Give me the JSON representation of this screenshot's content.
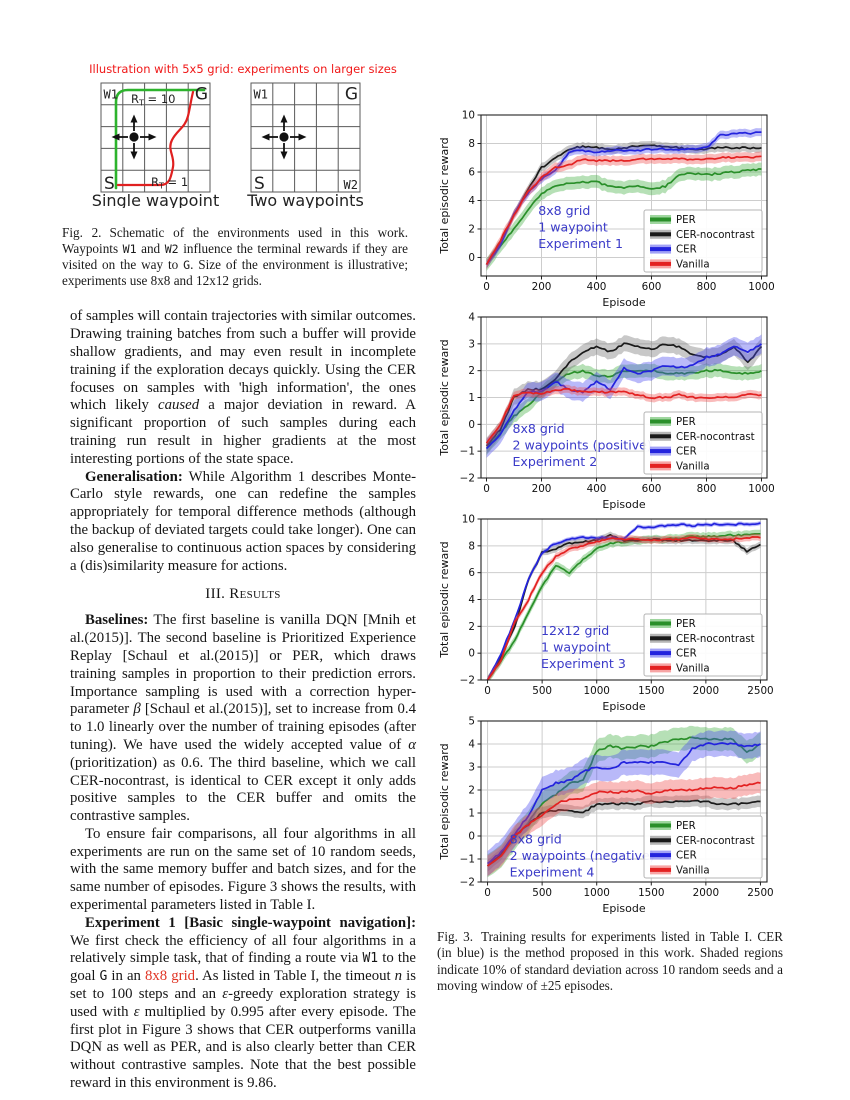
{
  "colors": {
    "annotation_blue": "#3a3ac8",
    "figure_title_red": "#f01818",
    "link_red": "#e03424",
    "per_green": "#2a8f2a",
    "cer_blue": "#2323dd",
    "vanilla_red": "#e32222",
    "nocontrast_black": "#1a1a1a"
  },
  "figure2": {
    "title": "Illustration with 5x5 grid: experiments on larger sizes",
    "left": {
      "w1": "W1",
      "g": "G",
      "s": "S",
      "caption": "Single waypoint",
      "rt_top": {
        "r": "R",
        "sub": "T",
        "eq": " = 10"
      },
      "rt_bottom": {
        "r": "R",
        "sub": "T",
        "eq": " = 1"
      }
    },
    "right": {
      "w1": "W1",
      "g": "G",
      "s": "S",
      "w2": "W2",
      "caption": "Two waypoints"
    },
    "caption_segments": [
      {
        "t": "Fig. 2.",
        "s": "figno"
      },
      {
        "t": "Schematic of the environments used in this work. Waypoints "
      },
      {
        "t": "W1",
        "s": "tt"
      },
      {
        "t": " and "
      },
      {
        "t": "W2",
        "s": "tt"
      },
      {
        "t": " influence the terminal rewards if they are visited on the way to "
      },
      {
        "t": "G",
        "s": "tt"
      },
      {
        "t": ". Size of the environment is illustrative; experiments use 8x8 and 12x12 grids."
      }
    ]
  },
  "left_column": {
    "para_outcomes": [
      {
        "t": "of samples will contain trajectories with similar outcomes. Drawing training batches from such a buffer will provide shallow gradients, and may even result in incomplete training if the exploration decays quickly. Using the CER focuses on samples with 'high information', the ones which likely "
      },
      {
        "t": "caused",
        "s": "i"
      },
      {
        "t": " a major deviation in reward. A significant proportion of such samples during each training run result in higher gradients at the most interesting portions of the state space."
      }
    ],
    "para_generalisation": [
      {
        "t": "Generalisation:",
        "s": "b"
      },
      {
        "t": " While Algorithm 1 describes Monte-Carlo style rewards, one can redefine the samples appropriately for temporal difference methods (although the backup of deviated targets could take longer). One can also generalise to continuous action spaces by considering a (dis)similarity measure for actions."
      }
    ],
    "heading": [
      {
        "t": "III. "
      },
      {
        "t": "Results",
        "s": "sc"
      }
    ],
    "para_baselines": [
      {
        "t": "Baselines:",
        "s": "b"
      },
      {
        "t": " The first baseline is vanilla DQN [Mnih et al.(2015)]. The second baseline is Prioritized Experience Replay [Schaul et al.(2015)] or PER, which draws training samples in proportion to their prediction errors. Importance sampling is used with a correction hyper-parameter "
      },
      {
        "t": "β",
        "s": "i"
      },
      {
        "t": " [Schaul et al.(2015)], set to increase from 0.4 to 1.0 linearly over the number of training episodes (after tuning). We have used the widely accepted value of "
      },
      {
        "t": "α",
        "s": "i"
      },
      {
        "t": " (prioritization) as 0.6. The third baseline, which we call CER-nocontrast, is identical to CER except it only adds positive samples to the CER buffer and omits the contrastive samples."
      }
    ],
    "para_fair": [
      {
        "t": "To ensure fair comparisons, all four algorithms in all experiments are run on the same set of 10 random seeds, with the same memory buffer and batch sizes, and for the same number of episodes. Figure 3 shows the results, with experimental parameters listed in Table I."
      }
    ],
    "para_experiment1": [
      {
        "t": "Experiment 1 [Basic single-waypoint navigation]:",
        "s": "b"
      },
      {
        "t": " We first check the efficiency of all four algorithms in a relatively simple task, that of finding a route via "
      },
      {
        "t": "W1",
        "s": "tt"
      },
      {
        "t": " to the goal "
      },
      {
        "t": "G",
        "s": "tt"
      },
      {
        "t": " in an "
      },
      {
        "t": "8x8 grid",
        "s": "red",
        "n": "ref-link-8x8-grid"
      },
      {
        "t": ". As listed in Table I, the timeout "
      },
      {
        "t": "n",
        "s": "i"
      },
      {
        "t": " is set to 100 steps and an "
      },
      {
        "t": "ε",
        "s": "i"
      },
      {
        "t": "-greedy exploration strategy is used with "
      },
      {
        "t": "ε",
        "s": "i"
      },
      {
        "t": " multiplied by 0.995 after every episode. The first plot in Figure 3 shows that CER outperforms vanilla DQN as well as PER, and is also clearly better than CER without contrastive samples. Note that the best possible reward in this environment is 9.86."
      }
    ]
  },
  "figure3": {
    "caption_segments": [
      {
        "t": "Fig. 3.",
        "s": "figno"
      },
      {
        "t": "Training results for experiments listed in Table I. CER (in blue) is the method proposed in this work. Shaded regions indicate 10% of standard deviation across 10 random seeds and a moving window of ±25 episodes."
      }
    ]
  },
  "chart_data": [
    {
      "type": "line",
      "title": "",
      "xlabel": "Episode",
      "ylabel": "Total episodic reward",
      "xlim": [
        -20,
        1020
      ],
      "ylim": [
        -1.3,
        10
      ],
      "xticks": [
        0,
        200,
        400,
        600,
        800,
        1000
      ],
      "yticks": [
        0,
        2,
        4,
        6,
        8,
        10
      ],
      "grid": true,
      "legend_position": "lower right",
      "legend_pos": [
        0.57,
        0.59
      ],
      "noise": 0.13,
      "annotation": {
        "lines": [
          "8x8 grid",
          "1 waypoint",
          "Experiment 1"
        ],
        "pos": [
          0.2,
          0.62
        ]
      },
      "x": [
        0,
        50,
        100,
        150,
        200,
        250,
        300,
        350,
        400,
        450,
        500,
        550,
        600,
        650,
        700,
        750,
        800,
        850,
        900,
        950,
        1000
      ],
      "series": [
        {
          "name": "PER",
          "color": "#2a8f2a",
          "fill": "#3fae3f",
          "band": 0.45,
          "values": [
            -0.5,
            0.8,
            2.0,
            3.3,
            4.5,
            5.0,
            5.2,
            5.3,
            5.3,
            5.0,
            4.9,
            5.0,
            4.8,
            5.0,
            5.8,
            5.9,
            5.8,
            5.9,
            6.0,
            6.1,
            6.2
          ]
        },
        {
          "name": "CER-nocontrast",
          "color": "#1a1a1a",
          "fill": "#6e6e6e",
          "band": 0.3,
          "values": [
            -0.5,
            1.0,
            3.0,
            4.8,
            6.3,
            7.0,
            7.6,
            7.8,
            7.7,
            7.6,
            7.7,
            7.8,
            7.9,
            7.8,
            7.7,
            7.6,
            7.6,
            7.7,
            7.7,
            7.7,
            7.7
          ]
        },
        {
          "name": "CER",
          "color": "#2323dd",
          "fill": "#4646ee",
          "band": 0.28,
          "values": [
            -0.5,
            0.9,
            3.1,
            4.5,
            5.5,
            6.1,
            7.4,
            7.5,
            7.4,
            7.5,
            7.5,
            7.5,
            7.6,
            7.6,
            7.6,
            7.6,
            7.7,
            8.6,
            8.7,
            8.7,
            8.8
          ]
        },
        {
          "name": "Vanilla",
          "color": "#e32222",
          "fill": "#f04b4b",
          "band": 0.33,
          "values": [
            -0.5,
            1.2,
            3.0,
            4.6,
            5.6,
            6.3,
            6.5,
            6.9,
            6.8,
            6.8,
            6.8,
            6.9,
            6.9,
            6.9,
            6.9,
            6.9,
            6.9,
            7.0,
            7.0,
            7.0,
            7.1
          ]
        }
      ]
    },
    {
      "type": "line",
      "title": "",
      "xlabel": "Episode",
      "ylabel": "Total episodic reward",
      "xlim": [
        -20,
        1020
      ],
      "ylim": [
        -2,
        4
      ],
      "xticks": [
        0,
        200,
        400,
        600,
        800,
        1000
      ],
      "yticks": [
        -2,
        -1,
        0,
        1,
        2,
        3,
        4
      ],
      "grid": true,
      "legend_position": "lower right",
      "legend_pos": [
        0.57,
        0.59
      ],
      "noise": 0.07,
      "annotation": {
        "lines": [
          "8x8 grid",
          "2 waypoints (positive)",
          "Experiment 2"
        ],
        "pos": [
          0.11,
          0.72
        ]
      },
      "x": [
        0,
        50,
        100,
        150,
        200,
        250,
        300,
        350,
        400,
        450,
        500,
        550,
        600,
        650,
        700,
        750,
        800,
        850,
        900,
        950,
        1000
      ],
      "series": [
        {
          "name": "PER",
          "color": "#2a8f2a",
          "fill": "#3fae3f",
          "band": 0.25,
          "values": [
            -0.9,
            -0.3,
            0.3,
            0.7,
            1.2,
            1.6,
            1.9,
            2.0,
            1.8,
            1.8,
            2.0,
            2.0,
            2.0,
            1.9,
            1.9,
            1.9,
            2.0,
            2.0,
            1.9,
            1.9,
            2.0
          ]
        },
        {
          "name": "CER-nocontrast",
          "color": "#1a1a1a",
          "fill": "#6e6e6e",
          "band": 0.3,
          "values": [
            -0.8,
            -0.2,
            1.0,
            1.3,
            1.3,
            1.7,
            2.3,
            2.7,
            2.9,
            2.7,
            3.0,
            2.9,
            2.8,
            3.0,
            2.9,
            2.6,
            2.5,
            2.6,
            2.9,
            2.3,
            2.9
          ]
        },
        {
          "name": "CER",
          "color": "#2323dd",
          "fill": "#4646ee",
          "band": 0.35,
          "values": [
            -0.9,
            -0.4,
            0.5,
            1.2,
            1.2,
            1.6,
            1.3,
            1.2,
            1.6,
            1.3,
            2.1,
            1.9,
            2.0,
            2.2,
            2.1,
            2.2,
            2.5,
            2.6,
            2.9,
            2.7,
            3.0
          ]
        },
        {
          "name": "Vanilla",
          "color": "#e32222",
          "fill": "#f04b4b",
          "band": 0.15,
          "values": [
            -0.7,
            0.0,
            1.1,
            1.2,
            1.1,
            1.3,
            1.3,
            1.2,
            1.2,
            1.2,
            1.2,
            1.1,
            1.0,
            1.0,
            1.1,
            1.0,
            1.0,
            1.0,
            1.0,
            1.1,
            1.1
          ]
        }
      ]
    },
    {
      "type": "line",
      "title": "",
      "xlabel": "Episode",
      "ylabel": "Total episodic reward",
      "xlim": [
        -60,
        2560
      ],
      "ylim": [
        -2,
        10
      ],
      "xticks": [
        0,
        500,
        1000,
        1500,
        2000,
        2500
      ],
      "yticks": [
        -2,
        0,
        2,
        4,
        6,
        8,
        10
      ],
      "grid": true,
      "legend_position": "lower right",
      "legend_pos": [
        0.57,
        0.59
      ],
      "noise": 0.13,
      "annotation": {
        "lines": [
          "12x12 grid",
          "1 waypoint",
          "Experiment 3"
        ],
        "pos": [
          0.21,
          0.72
        ]
      },
      "x": [
        0,
        125,
        250,
        375,
        500,
        625,
        750,
        875,
        1000,
        1125,
        1250,
        1375,
        1500,
        1625,
        1750,
        1875,
        2000,
        2125,
        2250,
        2375,
        2500
      ],
      "series": [
        {
          "name": "PER",
          "color": "#2a8f2a",
          "fill": "#3fae3f",
          "band": 0.3,
          "values": [
            -2.0,
            -0.6,
            1.0,
            3.0,
            5.0,
            6.5,
            6.0,
            7.0,
            7.8,
            8.2,
            8.3,
            8.4,
            8.5,
            8.5,
            8.6,
            8.7,
            8.7,
            8.7,
            8.8,
            8.8,
            8.9
          ]
        },
        {
          "name": "CER-nocontrast",
          "color": "#1a1a1a",
          "fill": "#6e6e6e",
          "band": 0.25,
          "values": [
            -2.0,
            -0.3,
            2.0,
            5.5,
            7.5,
            7.8,
            8.2,
            8.3,
            8.4,
            8.8,
            8.4,
            8.4,
            8.5,
            8.4,
            8.4,
            8.4,
            8.4,
            8.4,
            8.4,
            7.6,
            8.1
          ]
        },
        {
          "name": "CER",
          "color": "#2323dd",
          "fill": "#4646ee",
          "band": 0.15,
          "values": [
            -2.0,
            0.0,
            2.5,
            5.5,
            7.5,
            8.2,
            8.5,
            8.6,
            8.6,
            8.6,
            8.5,
            9.4,
            9.4,
            9.5,
            9.6,
            9.5,
            9.6,
            9.6,
            9.6,
            9.6,
            9.7
          ]
        },
        {
          "name": "Vanilla",
          "color": "#e32222",
          "fill": "#f04b4b",
          "band": 0.25,
          "values": [
            -2.0,
            -0.5,
            2.3,
            4.0,
            6.0,
            7.2,
            7.8,
            8.0,
            8.3,
            8.6,
            8.5,
            8.5,
            8.4,
            8.5,
            8.5,
            8.6,
            8.5,
            8.5,
            8.5,
            8.6,
            8.6
          ]
        }
      ]
    },
    {
      "type": "line",
      "title": "",
      "xlabel": "Episode",
      "ylabel": "Total episodic reward",
      "xlim": [
        -60,
        2560
      ],
      "ylim": [
        -2,
        5
      ],
      "xticks": [
        0,
        500,
        1000,
        1500,
        2000,
        2500
      ],
      "yticks": [
        -2,
        -1,
        0,
        1,
        2,
        3,
        4,
        5
      ],
      "grid": true,
      "legend_position": "lower right",
      "legend_pos": [
        0.57,
        0.59
      ],
      "noise": 0.09,
      "annotation": {
        "lines": [
          "8x8 grid",
          "2 waypoints (negative)",
          "Experiment 4"
        ],
        "pos": [
          0.1,
          0.76
        ]
      },
      "x": [
        0,
        125,
        250,
        375,
        500,
        625,
        750,
        875,
        1000,
        1125,
        1250,
        1375,
        1500,
        1625,
        1750,
        1875,
        2000,
        2125,
        2250,
        2375,
        2500
      ],
      "series": [
        {
          "name": "PER",
          "color": "#2a8f2a",
          "fill": "#3fae3f",
          "band": 0.5,
          "values": [
            -1.3,
            -0.9,
            -0.1,
            0.6,
            1.4,
            1.8,
            2.3,
            2.4,
            3.7,
            3.9,
            3.8,
            3.9,
            3.9,
            4.1,
            4.2,
            4.3,
            4.2,
            4.2,
            4.2,
            3.6,
            4.0
          ]
        },
        {
          "name": "CER-nocontrast",
          "color": "#1a1a1a",
          "fill": "#6e6e6e",
          "band": 0.25,
          "values": [
            -1.3,
            -0.8,
            0.0,
            0.5,
            1.0,
            1.1,
            1.1,
            1.0,
            1.4,
            1.4,
            1.4,
            1.4,
            1.5,
            1.5,
            1.5,
            1.5,
            1.5,
            1.4,
            1.4,
            1.4,
            1.5
          ]
        },
        {
          "name": "CER",
          "color": "#2323dd",
          "fill": "#4646ee",
          "band": 0.55,
          "values": [
            -1.2,
            -0.7,
            0.1,
            0.9,
            2.0,
            2.3,
            2.4,
            2.8,
            3.0,
            2.9,
            3.2,
            3.2,
            3.2,
            3.2,
            3.1,
            3.8,
            4.0,
            4.0,
            4.0,
            3.9,
            4.0
          ]
        },
        {
          "name": "Vanilla",
          "color": "#e32222",
          "fill": "#f04b4b",
          "band": 0.45,
          "values": [
            -1.3,
            -0.9,
            0.0,
            0.5,
            0.9,
            1.4,
            1.6,
            1.6,
            1.9,
            1.9,
            1.9,
            2.0,
            1.8,
            2.0,
            2.0,
            2.0,
            2.1,
            2.1,
            2.1,
            2.2,
            2.3
          ]
        }
      ]
    }
  ]
}
